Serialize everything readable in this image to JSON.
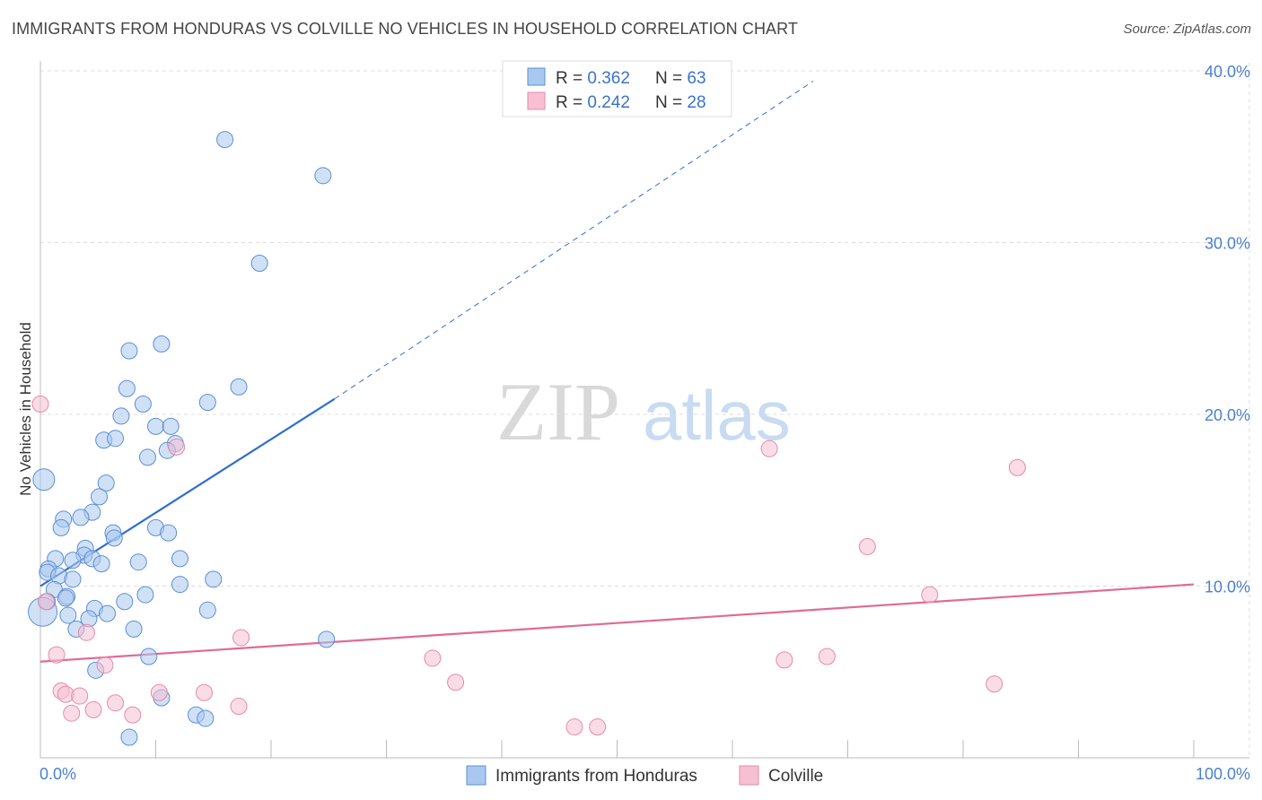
{
  "title": "IMMIGRANTS FROM HONDURAS VS COLVILLE NO VEHICLES IN HOUSEHOLD CORRELATION CHART",
  "source": "Source: ZipAtlas.com",
  "watermark": {
    "zip": "ZIP",
    "atlas": "atlas"
  },
  "legend": {
    "rows": [
      {
        "r_label": "R = ",
        "r_value": "0.362",
        "n_label": "N = ",
        "n_value": "63"
      },
      {
        "r_label": "R = ",
        "r_value": "0.242",
        "n_label": "N = ",
        "n_value": "28"
      }
    ]
  },
  "colors": {
    "blue_fill": "#a9c8ef",
    "blue_stroke": "#5b8fd6",
    "blue_line": "#2f6fce",
    "pink_fill": "#f6c0d2",
    "pink_stroke": "#e58aa8",
    "pink_line": "#e06a96",
    "grid": "#dddddd",
    "axis_text": "#4a7fd1"
  },
  "chart_data": {
    "type": "scatter",
    "xlabel": "",
    "ylabel": "No Vehicles in Household",
    "xlim": [
      0,
      100
    ],
    "ylim": [
      0,
      40
    ],
    "x_ticks": [
      "0.0%",
      "100.0%"
    ],
    "y_ticks": [
      {
        "value": 10,
        "label": "10.0%"
      },
      {
        "value": 20,
        "label": "20.0%"
      },
      {
        "value": 30,
        "label": "30.0%"
      },
      {
        "value": 40,
        "label": "40.0%"
      }
    ],
    "grid": true,
    "legend_position": "bottom",
    "series": [
      {
        "name": "Immigrants from Honduras",
        "color": "#a9c8ef",
        "trend": {
          "x": [
            0,
            25.5
          ],
          "y": [
            10.0,
            20.9
          ],
          "dashed_to": [
            67,
            39.4
          ]
        },
        "points": [
          [
            16,
            36.0
          ],
          [
            24.5,
            33.9
          ],
          [
            19,
            28.8
          ],
          [
            10.5,
            24.1
          ],
          [
            7.7,
            23.7
          ],
          [
            17.2,
            21.6
          ],
          [
            7.5,
            21.5
          ],
          [
            14.5,
            20.7
          ],
          [
            8.9,
            20.6
          ],
          [
            7,
            19.9
          ],
          [
            10,
            19.3
          ],
          [
            11.3,
            19.3
          ],
          [
            5.5,
            18.5
          ],
          [
            6.5,
            18.6
          ],
          [
            11.7,
            18.3
          ],
          [
            11,
            17.9
          ],
          [
            9.3,
            17.5
          ],
          [
            0.3,
            16.2
          ],
          [
            5.7,
            16.0
          ],
          [
            5.1,
            15.2
          ],
          [
            4.5,
            14.3
          ],
          [
            3.5,
            14.0
          ],
          [
            2,
            13.9
          ],
          [
            1.8,
            13.4
          ],
          [
            10,
            13.4
          ],
          [
            6.3,
            13.1
          ],
          [
            6.4,
            12.8
          ],
          [
            11.1,
            13.1
          ],
          [
            3.9,
            12.2
          ],
          [
            1.3,
            11.6
          ],
          [
            3.8,
            11.8
          ],
          [
            4.5,
            11.6
          ],
          [
            8.5,
            11.4
          ],
          [
            12.1,
            11.6
          ],
          [
            5.3,
            11.3
          ],
          [
            0.7,
            11.0
          ],
          [
            2.8,
            11.5
          ],
          [
            0.6,
            10.8
          ],
          [
            1.6,
            10.6
          ],
          [
            2.8,
            10.4
          ],
          [
            15,
            10.4
          ],
          [
            12.1,
            10.1
          ],
          [
            1.2,
            9.8
          ],
          [
            2.3,
            9.4
          ],
          [
            9.1,
            9.5
          ],
          [
            2.2,
            9.3
          ],
          [
            0.6,
            9.1
          ],
          [
            7.3,
            9.1
          ],
          [
            4.7,
            8.7
          ],
          [
            0.2,
            8.5
          ],
          [
            14.5,
            8.6
          ],
          [
            2.4,
            8.3
          ],
          [
            5.8,
            8.4
          ],
          [
            4.2,
            8.1
          ],
          [
            3.1,
            7.5
          ],
          [
            8.1,
            7.5
          ],
          [
            24.8,
            6.9
          ],
          [
            9.4,
            5.9
          ],
          [
            4.8,
            5.1
          ],
          [
            10.5,
            3.5
          ],
          [
            13.5,
            2.5
          ],
          [
            14.3,
            2.3
          ],
          [
            7.7,
            1.2
          ]
        ],
        "sizes": [
          1,
          1,
          1,
          1,
          1,
          1,
          1,
          1,
          1,
          1,
          1,
          1,
          1,
          1,
          1,
          1,
          1,
          2,
          1,
          1,
          1,
          1,
          1,
          1,
          1,
          1,
          1,
          1,
          1,
          1,
          1,
          1,
          1,
          1,
          1,
          1,
          1,
          1,
          1,
          1,
          1,
          1,
          1,
          1,
          1,
          1,
          1,
          1,
          1,
          3,
          1,
          1,
          1,
          1,
          1,
          1,
          1,
          1,
          1,
          1,
          1,
          1,
          1
        ]
      },
      {
        "name": "Colville",
        "color": "#f6c0d2",
        "trend": {
          "x": [
            0,
            100
          ],
          "y": [
            5.6,
            10.1
          ]
        },
        "points": [
          [
            0,
            20.6
          ],
          [
            11.8,
            18.1
          ],
          [
            84.7,
            16.9
          ],
          [
            63.2,
            18.0
          ],
          [
            71.7,
            12.3
          ],
          [
            77.1,
            9.5
          ],
          [
            0.5,
            9.1
          ],
          [
            4,
            7.3
          ],
          [
            17.4,
            7.0
          ],
          [
            1.4,
            6.0
          ],
          [
            34,
            5.8
          ],
          [
            64.5,
            5.7
          ],
          [
            68.2,
            5.9
          ],
          [
            5.6,
            5.4
          ],
          [
            36,
            4.4
          ],
          [
            82.7,
            4.3
          ],
          [
            1.8,
            3.9
          ],
          [
            2.2,
            3.7
          ],
          [
            3.4,
            3.6
          ],
          [
            10.3,
            3.8
          ],
          [
            14.2,
            3.8
          ],
          [
            6.5,
            3.2
          ],
          [
            17.2,
            3.0
          ],
          [
            2.7,
            2.6
          ],
          [
            4.6,
            2.8
          ],
          [
            8,
            2.5
          ],
          [
            46.3,
            1.8
          ],
          [
            48.3,
            1.8
          ]
        ],
        "sizes": [
          1,
          1,
          1,
          1,
          1,
          1,
          1,
          1,
          1,
          1,
          1,
          1,
          1,
          1,
          1,
          1,
          1,
          1,
          1,
          1,
          1,
          1,
          1,
          1,
          1,
          1,
          1,
          1
        ]
      }
    ]
  }
}
